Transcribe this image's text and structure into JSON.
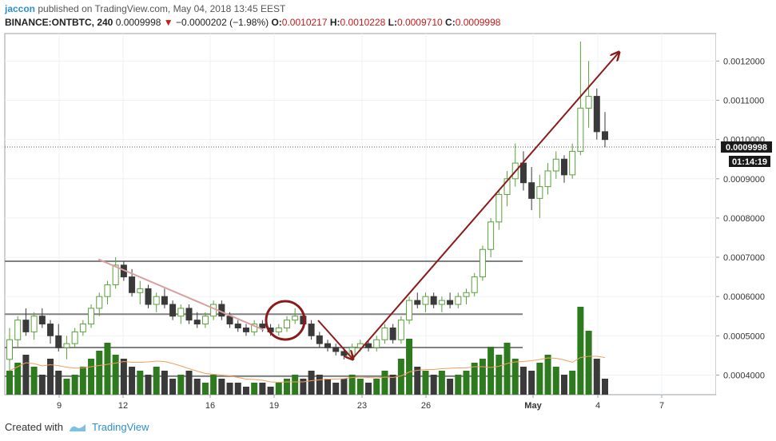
{
  "header": {
    "author": "jaccon",
    "published_text": "published on TradingView.com, May 04, 2018 13:45 EEST",
    "symbol": "BINANCE:ONTBTC, 240",
    "last": "0.0009998",
    "change": "−0.0000202 (−1.98%)",
    "o_label": "O:",
    "o": "0.0010217",
    "h_label": "H:",
    "h": "0.0010228",
    "l_label": "L:",
    "l": "0.0009710",
    "c_label": "C:",
    "c": "0.0009998"
  },
  "footer": {
    "created_with": "Created with",
    "brand": "TradingView"
  },
  "colors": {
    "up": "#5aa03a",
    "down": "#3a3a3a",
    "vol_up": "#2e7a1e",
    "vol_down": "#3a3a3a",
    "arrow": "#8b1a1a",
    "level": "#808080",
    "ma": "#f0a060"
  },
  "chart_data": {
    "type": "candlestick",
    "symbol": "BINANCE:ONTBTC",
    "interval": "240",
    "y_ticks": [
      "0.0012000",
      "0.0011000",
      "0.0010000",
      "0.0009000",
      "0.0008000",
      "0.0007000",
      "0.0006000",
      "0.0005000",
      "0.0004000"
    ],
    "ylim": [
      0.00035,
      0.00127
    ],
    "x_ticks": [
      "9",
      "12",
      "16",
      "19",
      "23",
      "26",
      "May",
      "4",
      "7"
    ],
    "price_tag": "0.0009998",
    "countdown": "01:14:19",
    "horizontal_levels": [
      0.00069,
      0.000555,
      0.00047,
      0.000397
    ],
    "annotations": {
      "trendline_down": {
        "from": [
          "11",
          0.000695
        ],
        "to": [
          "19",
          0.000515
        ]
      },
      "circle": {
        "at": [
          "20",
          0.00055
        ]
      },
      "arrow_down": {
        "from": [
          "21",
          0.000555
        ],
        "to": [
          "22.5",
          0.000445
        ]
      },
      "arrow_up": {
        "from": [
          "22.5",
          0.000445
        ],
        "to": [
          "May 4.5",
          0.00125
        ]
      }
    },
    "candles": [
      [
        0.00044,
        0.00052,
        0.00041,
        0.00049
      ],
      [
        0.00049,
        0.00055,
        0.00047,
        0.00054
      ],
      [
        0.00054,
        0.00057,
        0.0005,
        0.00051
      ],
      [
        0.00051,
        0.00056,
        0.00049,
        0.00055
      ],
      [
        0.00055,
        0.00057,
        0.00052,
        0.00053
      ],
      [
        0.00053,
        0.00054,
        0.00048,
        0.0005
      ],
      [
        0.0005,
        0.00053,
        0.00046,
        0.00047
      ],
      [
        0.00047,
        0.0005,
        0.00044,
        0.00048
      ],
      [
        0.00048,
        0.00052,
        0.00047,
        0.00051
      ],
      [
        0.00051,
        0.00054,
        0.0005,
        0.00053
      ],
      [
        0.00053,
        0.00058,
        0.00052,
        0.00057
      ],
      [
        0.00057,
        0.00061,
        0.00055,
        0.0006
      ],
      [
        0.0006,
        0.00064,
        0.00058,
        0.00063
      ],
      [
        0.00063,
        0.0007,
        0.00062,
        0.00068
      ],
      [
        0.00068,
        0.00069,
        0.00064,
        0.00065
      ],
      [
        0.00065,
        0.00067,
        0.0006,
        0.00061
      ],
      [
        0.00061,
        0.00064,
        0.00058,
        0.00062
      ],
      [
        0.00062,
        0.00063,
        0.00057,
        0.00058
      ],
      [
        0.00058,
        0.00061,
        0.00056,
        0.0006
      ],
      [
        0.0006,
        0.00062,
        0.00057,
        0.00058
      ],
      [
        0.00058,
        0.00059,
        0.00054,
        0.00055
      ],
      [
        0.00055,
        0.00058,
        0.00053,
        0.00057
      ],
      [
        0.00057,
        0.00058,
        0.00053,
        0.00054
      ],
      [
        0.00054,
        0.00056,
        0.00052,
        0.00053
      ],
      [
        0.00053,
        0.00056,
        0.00052,
        0.00055
      ],
      [
        0.00055,
        0.00059,
        0.00054,
        0.00058
      ],
      [
        0.00058,
        0.00059,
        0.00054,
        0.00055
      ],
      [
        0.00055,
        0.00056,
        0.00052,
        0.00053
      ],
      [
        0.00053,
        0.00054,
        0.00051,
        0.00052
      ],
      [
        0.00052,
        0.00053,
        0.0005,
        0.00051
      ],
      [
        0.00051,
        0.00054,
        0.0005,
        0.00053
      ],
      [
        0.00053,
        0.00054,
        0.00051,
        0.00052
      ],
      [
        0.00052,
        0.00053,
        0.0005,
        0.00051
      ],
      [
        0.00051,
        0.00053,
        0.0005,
        0.00052
      ],
      [
        0.00052,
        0.00055,
        0.00051,
        0.00054
      ],
      [
        0.00054,
        0.00057,
        0.00053,
        0.00055
      ],
      [
        0.00055,
        0.00056,
        0.00052,
        0.00053
      ],
      [
        0.00053,
        0.00054,
        0.00049,
        0.0005
      ],
      [
        0.0005,
        0.00051,
        0.00047,
        0.00048
      ],
      [
        0.00048,
        0.00049,
        0.00046,
        0.00047
      ],
      [
        0.00047,
        0.00048,
        0.00045,
        0.00046
      ],
      [
        0.00046,
        0.00047,
        0.00044,
        0.00045
      ],
      [
        0.00045,
        0.00048,
        0.00044,
        0.00047
      ],
      [
        0.00047,
        0.00049,
        0.00046,
        0.00048
      ],
      [
        0.00048,
        0.00049,
        0.00046,
        0.00047
      ],
      [
        0.00047,
        0.0005,
        0.00046,
        0.00049
      ],
      [
        0.00049,
        0.00053,
        0.00048,
        0.00052
      ],
      [
        0.00052,
        0.00053,
        0.00048,
        0.00049
      ],
      [
        0.00049,
        0.00055,
        0.00048,
        0.00054
      ],
      [
        0.00054,
        0.0006,
        0.00053,
        0.00059
      ],
      [
        0.00059,
        0.00061,
        0.00057,
        0.00058
      ],
      [
        0.00058,
        0.00061,
        0.00056,
        0.0006
      ],
      [
        0.0006,
        0.00061,
        0.00057,
        0.00058
      ],
      [
        0.00058,
        0.0006,
        0.00056,
        0.00059
      ],
      [
        0.00059,
        0.00061,
        0.00057,
        0.00058
      ],
      [
        0.00058,
        0.00061,
        0.00057,
        0.0006
      ],
      [
        0.0006,
        0.00062,
        0.00058,
        0.00061
      ],
      [
        0.00061,
        0.00066,
        0.0006,
        0.00065
      ],
      [
        0.00065,
        0.00073,
        0.00064,
        0.00072
      ],
      [
        0.00072,
        0.0008,
        0.0007,
        0.00079
      ],
      [
        0.00079,
        0.00087,
        0.00077,
        0.00086
      ],
      [
        0.00086,
        0.00092,
        0.00083,
        0.0009
      ],
      [
        0.0009,
        0.00099,
        0.00088,
        0.00094
      ],
      [
        0.00094,
        0.00097,
        0.00087,
        0.00089
      ],
      [
        0.00089,
        0.00093,
        0.00082,
        0.00085
      ],
      [
        0.00085,
        0.00091,
        0.0008,
        0.00088
      ],
      [
        0.00088,
        0.00094,
        0.00086,
        0.00092
      ],
      [
        0.00092,
        0.00097,
        0.0009,
        0.00095
      ],
      [
        0.00095,
        0.00096,
        0.00089,
        0.00091
      ],
      [
        0.00091,
        0.00099,
        0.0009,
        0.00097
      ],
      [
        0.00097,
        0.00125,
        0.00096,
        0.00108
      ],
      [
        0.00108,
        0.0012,
        0.00103,
        0.00111
      ],
      [
        0.00111,
        0.00113,
        0.001,
        0.00102
      ],
      [
        0.00102,
        0.00107,
        0.00098,
        0.001
      ]
    ],
    "volumes": [
      0.6,
      0.8,
      1.0,
      0.7,
      0.5,
      0.9,
      0.6,
      0.4,
      0.5,
      0.7,
      0.9,
      1.1,
      1.3,
      1.0,
      0.9,
      0.7,
      0.6,
      0.5,
      0.7,
      0.6,
      0.4,
      0.5,
      0.6,
      0.4,
      0.3,
      0.5,
      0.4,
      0.3,
      0.3,
      0.2,
      0.3,
      0.3,
      0.2,
      0.3,
      0.4,
      0.5,
      0.4,
      0.6,
      0.5,
      0.4,
      0.3,
      0.4,
      0.5,
      0.4,
      0.3,
      0.4,
      0.6,
      0.5,
      0.9,
      1.4,
      0.7,
      0.6,
      0.5,
      0.6,
      0.4,
      0.5,
      0.6,
      0.8,
      0.9,
      1.2,
      1.0,
      1.3,
      0.9,
      0.7,
      0.6,
      0.8,
      1.0,
      0.7,
      0.5,
      0.6,
      2.2,
      1.6,
      0.9,
      0.4
    ]
  }
}
